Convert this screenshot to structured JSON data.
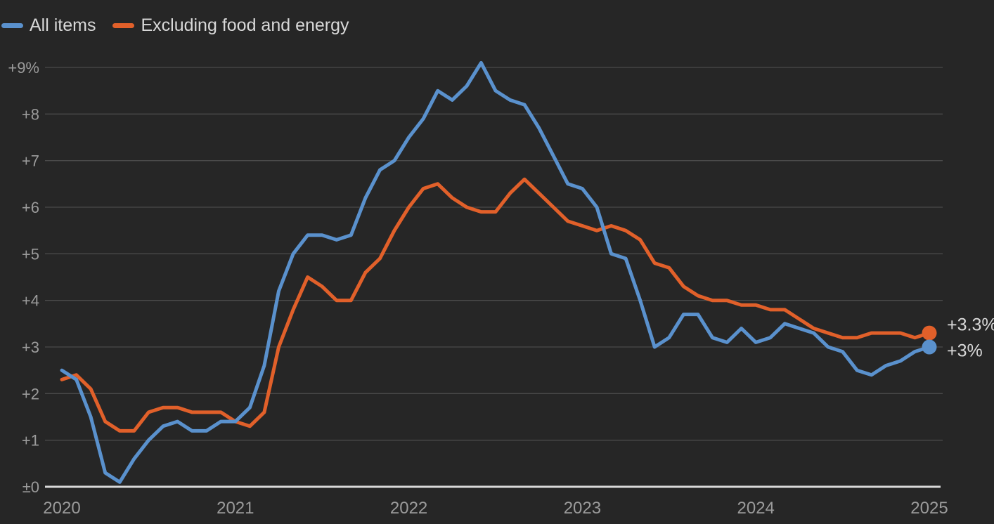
{
  "legend": [
    {
      "label": "All items",
      "color": "#5a91cd"
    },
    {
      "label": "Excluding food and energy",
      "color": "#e1602a"
    }
  ],
  "colors": {
    "background": "#262626",
    "grid": "#4a4a4a",
    "baseline": "#d9d9d9",
    "axis_text": "#9b9b9b",
    "label_text": "#d8d8d8",
    "all_items": "#5a91cd",
    "core": "#e1602a"
  },
  "chart_data": {
    "type": "line",
    "title": "",
    "xlabel": "",
    "ylabel": "",
    "x_unit": "month",
    "x_start": "2020-01",
    "x_end": "2025-01",
    "ylim": [
      0,
      9.3
    ],
    "grid": "horizontal",
    "legend_position": "top-left",
    "y_ticks": [
      {
        "value": 9,
        "label": "+9%"
      },
      {
        "value": 8,
        "label": "+8"
      },
      {
        "value": 7,
        "label": "+7"
      },
      {
        "value": 6,
        "label": "+6"
      },
      {
        "value": 5,
        "label": "+5"
      },
      {
        "value": 4,
        "label": "+4"
      },
      {
        "value": 3,
        "label": "+3"
      },
      {
        "value": 2,
        "label": "+2"
      },
      {
        "value": 1,
        "label": "+1"
      },
      {
        "value": 0,
        "label": "±0"
      }
    ],
    "x_ticks": [
      {
        "month_index": 0,
        "label": "2020"
      },
      {
        "month_index": 12,
        "label": "2021"
      },
      {
        "month_index": 24,
        "label": "2022"
      },
      {
        "month_index": 36,
        "label": "2023"
      },
      {
        "month_index": 48,
        "label": "2024"
      },
      {
        "month_index": 60,
        "label": "2025"
      }
    ],
    "series": [
      {
        "name": "All items",
        "color": "#5a91cd",
        "end_label": "+3%",
        "values": [
          2.5,
          2.3,
          1.5,
          0.3,
          0.1,
          0.6,
          1.0,
          1.3,
          1.4,
          1.2,
          1.2,
          1.4,
          1.4,
          1.7,
          2.6,
          4.2,
          5.0,
          5.4,
          5.4,
          5.3,
          5.4,
          6.2,
          6.8,
          7.0,
          7.5,
          7.9,
          8.5,
          8.3,
          8.6,
          9.1,
          8.5,
          8.3,
          8.2,
          7.7,
          7.1,
          6.5,
          6.4,
          6.0,
          5.0,
          4.9,
          4.0,
          3.0,
          3.2,
          3.7,
          3.7,
          3.2,
          3.1,
          3.4,
          3.1,
          3.2,
          3.5,
          3.4,
          3.3,
          3.0,
          2.9,
          2.5,
          2.4,
          2.6,
          2.7,
          2.9,
          3.0
        ]
      },
      {
        "name": "Excluding food and energy",
        "color": "#e1602a",
        "end_label": "+3.3%",
        "values": [
          2.3,
          2.4,
          2.1,
          1.4,
          1.2,
          1.2,
          1.6,
          1.7,
          1.7,
          1.6,
          1.6,
          1.6,
          1.4,
          1.3,
          1.6,
          3.0,
          3.8,
          4.5,
          4.3,
          4.0,
          4.0,
          4.6,
          4.9,
          5.5,
          6.0,
          6.4,
          6.5,
          6.2,
          6.0,
          5.9,
          5.9,
          6.3,
          6.6,
          6.3,
          6.0,
          5.7,
          5.6,
          5.5,
          5.6,
          5.5,
          5.3,
          4.8,
          4.7,
          4.3,
          4.1,
          4.0,
          4.0,
          3.9,
          3.9,
          3.8,
          3.8,
          3.6,
          3.4,
          3.3,
          3.2,
          3.2,
          3.3,
          3.3,
          3.3,
          3.2,
          3.3
        ]
      }
    ]
  }
}
